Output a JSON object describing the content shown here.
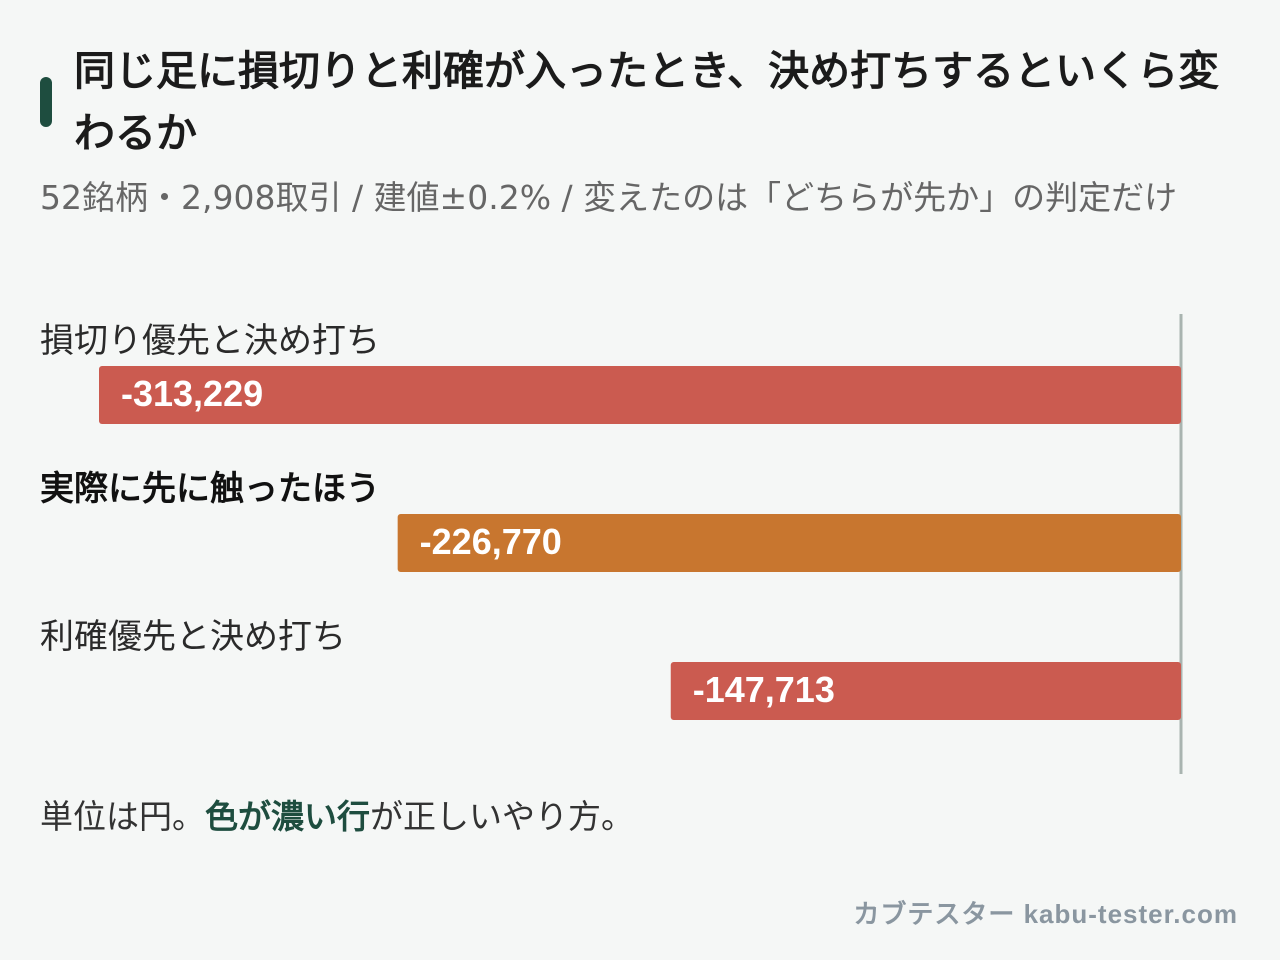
{
  "title": "同じ足に損切りと利確が入ったとき、決め打ちするといくら変わるか",
  "subtitle": "52銘柄・2,908取引 / 建値±0.2% / 変えたのは「どちらが先か」の判定だけ",
  "note": {
    "before": "単位は円。",
    "highlight": "色が濃い行",
    "after": "が正しいやり方。"
  },
  "footer": "カブテスター kabu-tester.com",
  "colors": {
    "accent": "#1e4d3f",
    "bar_red": "#cb5b50",
    "bar_orange": "#c8762f",
    "axis": "#a9b4b0"
  },
  "chart_data": {
    "type": "bar",
    "orientation": "horizontal",
    "unit": "円",
    "categories": [
      "損切り優先と決め打ち",
      "実際に先に触ったほう",
      "利確優先と決め打ち"
    ],
    "values": [
      -313229,
      -226770,
      -147713
    ],
    "value_labels": [
      "-313,229",
      "-226,770",
      "-147,713"
    ],
    "highlighted": [
      false,
      true,
      false
    ],
    "bar_colors": [
      "#cb5b50",
      "#c8762f",
      "#cb5b50"
    ],
    "xlim": [
      -330000,
      0
    ],
    "grid": false,
    "legend": "none"
  }
}
